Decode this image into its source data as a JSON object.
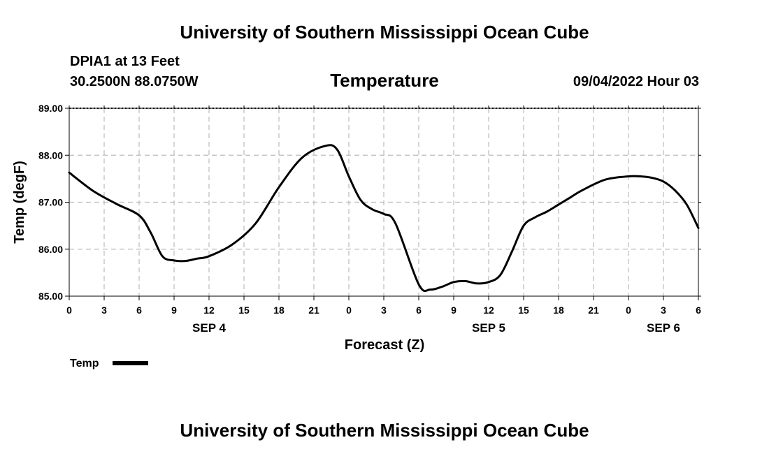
{
  "header": {
    "title_top": "University of Southern Mississippi Ocean Cube",
    "station": "DPIA1 at 13 Feet",
    "coords": "30.2500N  88.0750W",
    "subtitle": "Temperature",
    "datetime": "09/04/2022 Hour 03",
    "title_bottom": "University of Southern Mississippi Ocean Cube"
  },
  "chart_data": {
    "type": "line",
    "title": "Temperature",
    "xlabel": "Forecast (Z)",
    "ylabel": "Temp (degF)",
    "ylim": [
      85.0,
      89.0
    ],
    "xlim": [
      0,
      54
    ],
    "yticks": [
      "85.00",
      "86.00",
      "87.00",
      "88.00",
      "89.00"
    ],
    "xticks": [
      "0",
      "3",
      "6",
      "9",
      "12",
      "15",
      "18",
      "21",
      "0",
      "3",
      "6",
      "9",
      "12",
      "15",
      "18",
      "21",
      "0",
      "3",
      "6"
    ],
    "date_labels": [
      {
        "label": "SEP 4",
        "at_hour": 12
      },
      {
        "label": "SEP 5",
        "at_hour": 36
      },
      {
        "label": "SEP 6",
        "at_hour": 51
      }
    ],
    "grid": true,
    "legend": {
      "position": "bottom-left",
      "entries": [
        "Temp"
      ]
    },
    "series": [
      {
        "name": "Temp",
        "color": "#000000",
        "x": [
          0,
          2,
          4,
          6,
          7,
          8,
          9,
          10,
          11,
          12,
          14,
          16,
          18,
          20,
          22,
          23,
          24,
          25,
          26,
          27,
          28,
          30,
          31,
          32,
          33,
          34,
          35,
          36,
          37,
          38,
          39,
          40,
          41,
          42,
          43,
          44,
          46,
          48,
          49,
          50,
          51,
          52,
          53,
          54
        ],
        "y": [
          87.63,
          87.25,
          86.97,
          86.72,
          86.35,
          85.85,
          85.76,
          85.75,
          85.8,
          85.85,
          86.1,
          86.55,
          87.32,
          87.95,
          88.2,
          88.12,
          87.55,
          87.05,
          86.85,
          86.75,
          86.55,
          85.25,
          85.14,
          85.2,
          85.3,
          85.32,
          85.27,
          85.3,
          85.45,
          85.95,
          86.5,
          86.68,
          86.8,
          86.95,
          87.1,
          87.25,
          87.48,
          87.55,
          87.55,
          87.52,
          87.44,
          87.25,
          86.95,
          86.45
        ]
      }
    ]
  }
}
